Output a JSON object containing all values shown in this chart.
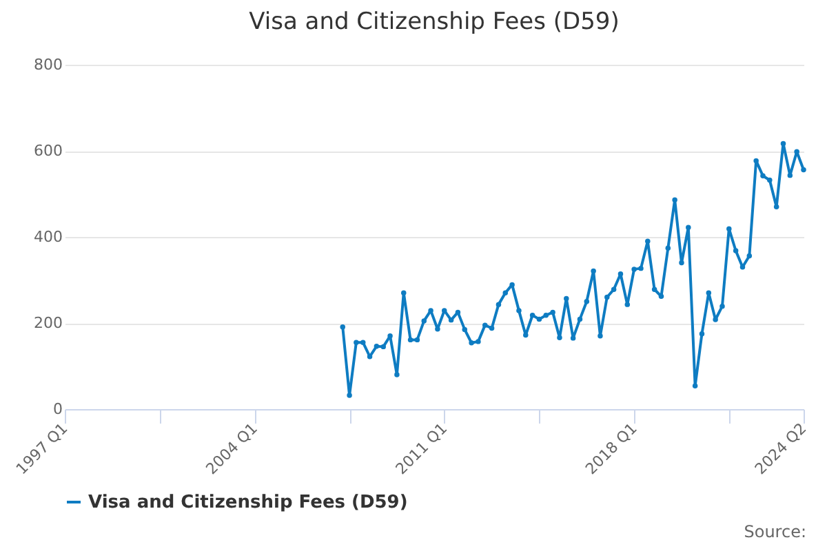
{
  "chart_data": {
    "type": "line",
    "title": "Visa and Citizenship Fees (D59)",
    "categories": [
      "1997 Q1",
      null,
      null,
      null,
      null,
      null,
      null,
      null,
      null,
      null,
      null,
      null,
      null,
      null,
      null,
      null,
      null,
      null,
      null,
      null,
      null,
      null,
      null,
      null,
      null,
      null,
      null,
      null,
      "2004 Q1",
      null,
      null,
      null,
      null,
      null,
      null,
      null,
      null,
      null,
      null,
      null,
      null,
      null,
      null,
      null,
      null,
      null,
      null,
      null,
      null,
      null,
      null,
      null,
      null,
      null,
      null,
      null,
      "2011 Q1",
      null,
      null,
      null,
      null,
      null,
      null,
      null,
      null,
      null,
      null,
      null,
      null,
      null,
      null,
      null,
      null,
      null,
      null,
      null,
      null,
      null,
      null,
      null,
      null,
      null,
      null,
      null,
      "2018 Q1",
      null,
      null,
      null,
      null,
      null,
      null,
      null,
      null,
      null,
      null,
      null,
      null,
      null,
      null,
      null,
      null,
      null,
      null,
      null,
      null,
      null,
      null,
      null,
      null,
      "2024 Q2"
    ],
    "series": [
      {
        "name": "Visa and Citizenship Fees (D59)",
        "color": "#0e7cc2",
        "values": [
          null,
          null,
          null,
          null,
          null,
          null,
          null,
          null,
          null,
          null,
          null,
          null,
          null,
          null,
          null,
          null,
          null,
          null,
          null,
          null,
          null,
          null,
          null,
          null,
          null,
          null,
          null,
          null,
          null,
          null,
          null,
          null,
          null,
          null,
          null,
          null,
          null,
          null,
          null,
          null,
          null,
          191,
          32,
          155,
          155,
          122,
          146,
          145,
          170,
          80,
          270,
          161,
          161,
          205,
          229,
          186,
          229,
          207,
          225,
          185,
          154,
          157,
          195,
          188,
          243,
          270,
          289,
          229,
          172,
          218,
          209,
          218,
          225,
          166,
          257,
          165,
          209,
          250,
          321,
          170,
          260,
          278,
          314,
          243,
          325,
          327,
          390,
          278,
          262,
          374,
          486,
          340,
          422,
          54,
          175,
          270,
          208,
          239,
          419,
          368,
          330,
          356,
          577,
          542,
          532,
          470,
          617,
          543,
          598,
          556
        ]
      }
    ],
    "ylim": [
      0,
      800
    ],
    "yticks": [
      0,
      200,
      400,
      600,
      800
    ],
    "grid": "y",
    "legend": "bottom",
    "marker": "circle",
    "line_style": "solid",
    "annotations": [
      "Source:"
    ]
  }
}
